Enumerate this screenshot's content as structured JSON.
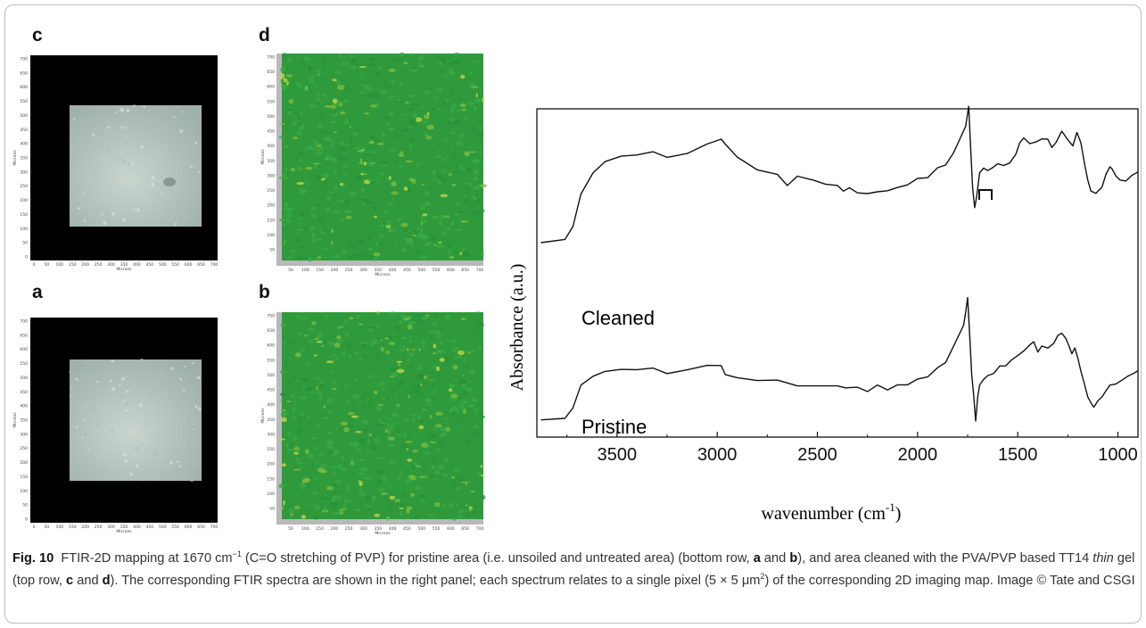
{
  "panels": {
    "c": {
      "letter": "c"
    },
    "d": {
      "letter": "d"
    },
    "a": {
      "letter": "a"
    },
    "b": {
      "letter": "b"
    }
  },
  "micrograph_axes": {
    "y_label": "Microns",
    "x_label": "Microns",
    "optical_y_ticks": [
      "700",
      "650",
      "600",
      "550",
      "500",
      "450",
      "400",
      "350",
      "300",
      "250",
      "200",
      "150",
      "100",
      "50",
      "0"
    ],
    "optical_x_ticks": [
      "0",
      "50",
      "100",
      "150",
      "200",
      "250",
      "300",
      "350",
      "400",
      "450",
      "500",
      "550",
      "600",
      "650",
      "700"
    ],
    "map_y_ticks": [
      "700",
      "650",
      "600",
      "550",
      "500",
      "450",
      "400",
      "350",
      "300",
      "250",
      "200",
      "150",
      "100",
      "50"
    ],
    "map_x_ticks": [
      "50",
      "100",
      "150",
      "200",
      "250",
      "300",
      "350",
      "400",
      "450",
      "500",
      "550",
      "600",
      "650",
      "700"
    ]
  },
  "colors": {
    "map_green": "#2f9a3c",
    "map_speckle": "#c8d94a",
    "optical_background": "#000000",
    "optical_sample": "#9fb0ab"
  },
  "chart_data": {
    "type": "line",
    "xlabel": "wavenumber (cm",
    "xlabel_sup": "-1",
    "xlabel_close": ")",
    "ylabel": "Absorbance (a.u.)",
    "x_reversed": true,
    "xlim": [
      3900,
      900
    ],
    "x_ticks": [
      3500,
      3000,
      2500,
      2000,
      1500,
      1000
    ],
    "series": [
      {
        "name": "Cleaned",
        "x": [
          3880,
          3760,
          3720,
          3680,
          3620,
          3560,
          3480,
          3400,
          3320,
          3250,
          3150,
          3050,
          2980,
          2960,
          2900,
          2800,
          2700,
          2650,
          2600,
          2520,
          2460,
          2400,
          2370,
          2340,
          2300,
          2250,
          2200,
          2150,
          2100,
          2050,
          2000,
          1950,
          1900,
          1860,
          1820,
          1790,
          1760,
          1745,
          1735,
          1725,
          1715,
          1705,
          1690,
          1670,
          1650,
          1625,
          1600,
          1570,
          1540,
          1510,
          1490,
          1470,
          1440,
          1410,
          1380,
          1350,
          1330,
          1310,
          1280,
          1250,
          1225,
          1205,
          1185,
          1165,
          1150,
          1135,
          1110,
          1080,
          1060,
          1040,
          1030,
          1010,
          990,
          960,
          930,
          900
        ],
        "y": [
          0.25,
          0.27,
          0.35,
          0.55,
          0.7,
          0.75,
          0.78,
          0.79,
          0.8,
          0.79,
          0.8,
          0.85,
          0.89,
          0.86,
          0.78,
          0.7,
          0.66,
          0.62,
          0.65,
          0.63,
          0.6,
          0.62,
          0.56,
          0.58,
          0.57,
          0.55,
          0.58,
          0.56,
          0.59,
          0.61,
          0.64,
          0.67,
          0.7,
          0.74,
          0.8,
          0.88,
          0.99,
          1.1,
          0.84,
          0.6,
          0.47,
          0.52,
          0.67,
          0.7,
          0.71,
          0.72,
          0.74,
          0.72,
          0.76,
          0.81,
          0.86,
          0.9,
          0.88,
          0.89,
          0.88,
          0.9,
          0.85,
          0.88,
          0.93,
          0.88,
          0.86,
          0.94,
          0.86,
          0.72,
          0.63,
          0.58,
          0.57,
          0.59,
          0.66,
          0.72,
          0.71,
          0.67,
          0.65,
          0.63,
          0.66,
          0.69
        ]
      },
      {
        "name": "Pristine",
        "x": [
          3880,
          3760,
          3720,
          3680,
          3620,
          3560,
          3480,
          3400,
          3320,
          3250,
          3150,
          3050,
          2980,
          2960,
          2900,
          2800,
          2700,
          2600,
          2500,
          2400,
          2360,
          2300,
          2250,
          2200,
          2150,
          2100,
          2050,
          2000,
          1950,
          1900,
          1860,
          1820,
          1790,
          1770,
          1760,
          1750,
          1740,
          1730,
          1720,
          1710,
          1700,
          1690,
          1670,
          1650,
          1620,
          1590,
          1560,
          1530,
          1500,
          1470,
          1440,
          1420,
          1400,
          1380,
          1350,
          1320,
          1300,
          1280,
          1260,
          1245,
          1230,
          1215,
          1200,
          1185,
          1170,
          1150,
          1130,
          1120,
          1100,
          1080,
          1060,
          1040,
          1010,
          980,
          950,
          920,
          900
        ],
        "y": [
          0.02,
          0.03,
          0.1,
          0.25,
          0.33,
          0.34,
          0.35,
          0.35,
          0.35,
          0.34,
          0.35,
          0.37,
          0.38,
          0.32,
          0.3,
          0.28,
          0.27,
          0.25,
          0.26,
          0.25,
          0.23,
          0.25,
          0.22,
          0.24,
          0.23,
          0.24,
          0.26,
          0.28,
          0.32,
          0.36,
          0.42,
          0.5,
          0.6,
          0.67,
          0.75,
          0.85,
          0.6,
          0.32,
          0.18,
          0.0,
          0.16,
          0.24,
          0.29,
          0.32,
          0.34,
          0.37,
          0.4,
          0.43,
          0.45,
          0.48,
          0.53,
          0.55,
          0.47,
          0.5,
          0.52,
          0.55,
          0.58,
          0.6,
          0.55,
          0.52,
          0.48,
          0.52,
          0.45,
          0.34,
          0.26,
          0.16,
          0.14,
          0.12,
          0.16,
          0.19,
          0.21,
          0.25,
          0.27,
          0.29,
          0.31,
          0.34,
          0.35
        ]
      }
    ],
    "annotations": [
      {
        "text": "Cleaned"
      },
      {
        "text": "Pristine"
      }
    ]
  },
  "caption": {
    "fig_label": "Fig. 10",
    "part1": "FTIR-2D mapping at 1670 cm",
    "sup1": "−1",
    "part2": " (C=O stretching of PVP) for pristine area (i.e. unsoiled and untreated area) (bottom row, ",
    "a": "a",
    "and1": " and ",
    "b": "b",
    "part3": "), and area cleaned with the PVA/PVP based TT14 ",
    "thin": "thin",
    "part4": " gel (top row, ",
    "c": "c",
    "and2": " and ",
    "d": "d",
    "part5": "). The corresponding FTIR spectra are shown in the right panel; each spectrum relates to a single pixel (5 × 5 μm",
    "sup2": "2",
    "part6": ") of the corresponding 2D imaging map. Image © Tate and CSGI"
  }
}
